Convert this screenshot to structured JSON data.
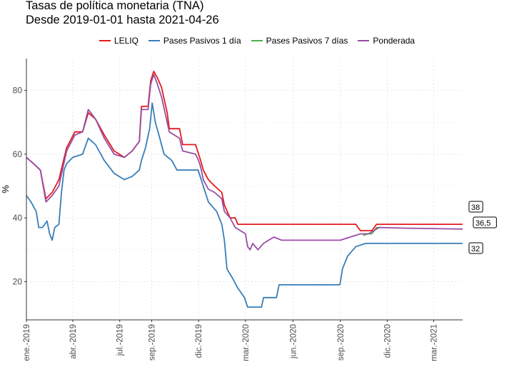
{
  "title": "Tasas de política monetaria (TNA)",
  "subtitle": "Desde 2019-01-01 hasta 2021-04-26",
  "chart_data": {
    "type": "line",
    "title": "Tasas de política monetaria (TNA)",
    "subtitle": "Desde 2019-01-01 hasta 2021-04-26",
    "xlabel": "",
    "ylabel": "%",
    "xlim": [
      "2019-01-01",
      "2021-04-26"
    ],
    "ylim": [
      8,
      90
    ],
    "yticks": [
      20,
      40,
      60,
      80
    ],
    "xticks": [
      {
        "date": "2019-01-01",
        "label": "ene.-2019"
      },
      {
        "date": "2019-04-01",
        "label": "abr.-2019"
      },
      {
        "date": "2019-07-01",
        "label": "jul.-2019"
      },
      {
        "date": "2019-09-01",
        "label": "sep.-2019"
      },
      {
        "date": "2019-12-01",
        "label": "dic.-2019"
      },
      {
        "date": "2020-03-01",
        "label": "mar.-2020"
      },
      {
        "date": "2020-06-01",
        "label": "jun.-2020"
      },
      {
        "date": "2020-09-01",
        "label": "sep.-2020"
      },
      {
        "date": "2020-12-01",
        "label": "dic.-2020"
      },
      {
        "date": "2021-03-01",
        "label": "mar.-2021"
      }
    ],
    "grid": true,
    "legend_position": "top",
    "series": [
      {
        "name": "LELIQ",
        "color": "#E41A1C",
        "end_label": "38",
        "points": [
          [
            "2019-01-01",
            59
          ],
          [
            "2019-01-15",
            57
          ],
          [
            "2019-01-28",
            55
          ],
          [
            "2019-02-08",
            46
          ],
          [
            "2019-02-20",
            48
          ],
          [
            "2019-03-05",
            52
          ],
          [
            "2019-03-20",
            62
          ],
          [
            "2019-04-05",
            67
          ],
          [
            "2019-04-20",
            67
          ],
          [
            "2019-05-01",
            73
          ],
          [
            "2019-05-15",
            71
          ],
          [
            "2019-06-01",
            66
          ],
          [
            "2019-06-20",
            61
          ],
          [
            "2019-07-10",
            59
          ],
          [
            "2019-07-25",
            61
          ],
          [
            "2019-08-08",
            64
          ],
          [
            "2019-08-12",
            75
          ],
          [
            "2019-08-25",
            75
          ],
          [
            "2019-08-30",
            83
          ],
          [
            "2019-09-05",
            86
          ],
          [
            "2019-09-12",
            84
          ],
          [
            "2019-09-20",
            81
          ],
          [
            "2019-10-01",
            73
          ],
          [
            "2019-10-05",
            68
          ],
          [
            "2019-10-25",
            68
          ],
          [
            "2019-10-31",
            63
          ],
          [
            "2019-11-25",
            63
          ],
          [
            "2019-12-01",
            60
          ],
          [
            "2019-12-05",
            58
          ],
          [
            "2019-12-10",
            55
          ],
          [
            "2019-12-20",
            52
          ],
          [
            "2020-01-01",
            50
          ],
          [
            "2020-01-15",
            48
          ],
          [
            "2020-01-20",
            44
          ],
          [
            "2020-01-31",
            40
          ],
          [
            "2020-02-10",
            40
          ],
          [
            "2020-02-15",
            38
          ],
          [
            "2020-03-15",
            38
          ],
          [
            "2020-06-01",
            38
          ],
          [
            "2020-09-01",
            38
          ],
          [
            "2020-10-01",
            38
          ],
          [
            "2020-10-05",
            37
          ],
          [
            "2020-10-10",
            36
          ],
          [
            "2020-11-01",
            36
          ],
          [
            "2020-11-10",
            38
          ],
          [
            "2021-01-01",
            38
          ],
          [
            "2021-04-26",
            38
          ]
        ]
      },
      {
        "name": "Pases Pasivos 1 día",
        "color": "#377EB8",
        "end_label": "32",
        "points": [
          [
            "2019-01-01",
            47
          ],
          [
            "2019-01-10",
            45
          ],
          [
            "2019-01-20",
            42
          ],
          [
            "2019-01-25",
            37
          ],
          [
            "2019-02-01",
            37
          ],
          [
            "2019-02-10",
            39
          ],
          [
            "2019-02-15",
            35
          ],
          [
            "2019-02-20",
            33
          ],
          [
            "2019-02-25",
            37
          ],
          [
            "2019-03-05",
            38
          ],
          [
            "2019-03-10",
            48
          ],
          [
            "2019-03-15",
            55
          ],
          [
            "2019-03-20",
            57
          ],
          [
            "2019-04-01",
            59
          ],
          [
            "2019-04-20",
            60
          ],
          [
            "2019-05-01",
            65
          ],
          [
            "2019-05-15",
            63
          ],
          [
            "2019-06-01",
            58
          ],
          [
            "2019-06-20",
            54
          ],
          [
            "2019-07-10",
            52
          ],
          [
            "2019-07-25",
            53
          ],
          [
            "2019-08-08",
            55
          ],
          [
            "2019-08-12",
            58
          ],
          [
            "2019-08-20",
            62
          ],
          [
            "2019-08-28",
            68
          ],
          [
            "2019-09-02",
            76
          ],
          [
            "2019-09-08",
            70
          ],
          [
            "2019-09-15",
            66
          ],
          [
            "2019-09-25",
            60
          ],
          [
            "2019-10-10",
            58
          ],
          [
            "2019-10-20",
            55
          ],
          [
            "2019-11-30",
            55
          ],
          [
            "2019-12-10",
            50
          ],
          [
            "2019-12-20",
            45
          ],
          [
            "2020-01-05",
            42
          ],
          [
            "2020-01-15",
            38
          ],
          [
            "2020-01-20",
            33
          ],
          [
            "2020-01-25",
            24
          ],
          [
            "2020-02-05",
            21
          ],
          [
            "2020-02-15",
            18
          ],
          [
            "2020-02-28",
            15
          ],
          [
            "2020-03-05",
            12
          ],
          [
            "2020-04-01",
            12
          ],
          [
            "2020-04-05",
            15
          ],
          [
            "2020-04-30",
            15
          ],
          [
            "2020-05-05",
            19
          ],
          [
            "2020-08-31",
            19
          ],
          [
            "2020-09-05",
            24
          ],
          [
            "2020-09-15",
            28
          ],
          [
            "2020-10-01",
            31
          ],
          [
            "2020-10-20",
            32
          ],
          [
            "2020-11-10",
            32
          ],
          [
            "2021-04-26",
            32
          ]
        ]
      },
      {
        "name": "Pases Pasivos 7 días",
        "color": "#4DAF4A",
        "points": [
          [
            "2020-10-15",
            34.5
          ],
          [
            "2020-10-25",
            35
          ],
          [
            "2020-11-01",
            35
          ],
          [
            "2020-11-10",
            37
          ],
          [
            "2020-11-20",
            37
          ]
        ]
      },
      {
        "name": "Ponderada",
        "color": "#984EA3",
        "end_label": "36,5",
        "points": [
          [
            "2019-01-01",
            59
          ],
          [
            "2019-01-15",
            57
          ],
          [
            "2019-01-28",
            55
          ],
          [
            "2019-02-08",
            45
          ],
          [
            "2019-02-20",
            47
          ],
          [
            "2019-03-05",
            50
          ],
          [
            "2019-03-20",
            61
          ],
          [
            "2019-04-05",
            66
          ],
          [
            "2019-04-20",
            67
          ],
          [
            "2019-05-01",
            74
          ],
          [
            "2019-05-15",
            71
          ],
          [
            "2019-06-01",
            65
          ],
          [
            "2019-06-20",
            60
          ],
          [
            "2019-07-10",
            59
          ],
          [
            "2019-07-25",
            61
          ],
          [
            "2019-08-08",
            64
          ],
          [
            "2019-08-12",
            74
          ],
          [
            "2019-08-25",
            74
          ],
          [
            "2019-08-30",
            82
          ],
          [
            "2019-09-05",
            85
          ],
          [
            "2019-09-12",
            82
          ],
          [
            "2019-09-20",
            78
          ],
          [
            "2019-10-01",
            70
          ],
          [
            "2019-10-05",
            67
          ],
          [
            "2019-10-25",
            65
          ],
          [
            "2019-10-31",
            61
          ],
          [
            "2019-11-25",
            60
          ],
          [
            "2019-12-01",
            58
          ],
          [
            "2019-12-05",
            56
          ],
          [
            "2019-12-10",
            52
          ],
          [
            "2019-12-20",
            49
          ],
          [
            "2020-01-01",
            48
          ],
          [
            "2020-01-15",
            46
          ],
          [
            "2020-01-20",
            42
          ],
          [
            "2020-01-31",
            40
          ],
          [
            "2020-02-10",
            37
          ],
          [
            "2020-02-20",
            36
          ],
          [
            "2020-03-01",
            35
          ],
          [
            "2020-03-05",
            31
          ],
          [
            "2020-03-10",
            30
          ],
          [
            "2020-03-15",
            32
          ],
          [
            "2020-03-25",
            30
          ],
          [
            "2020-04-05",
            32
          ],
          [
            "2020-04-15",
            33
          ],
          [
            "2020-04-25",
            34
          ],
          [
            "2020-05-10",
            33
          ],
          [
            "2020-06-01",
            33
          ],
          [
            "2020-07-01",
            33
          ],
          [
            "2020-08-01",
            33
          ],
          [
            "2020-09-01",
            33
          ],
          [
            "2020-09-20",
            34
          ],
          [
            "2020-10-10",
            35
          ],
          [
            "2020-10-25",
            35
          ],
          [
            "2020-11-05",
            36
          ],
          [
            "2020-11-15",
            37
          ],
          [
            "2021-01-01",
            36.8
          ],
          [
            "2021-04-26",
            36.5
          ]
        ]
      }
    ]
  }
}
